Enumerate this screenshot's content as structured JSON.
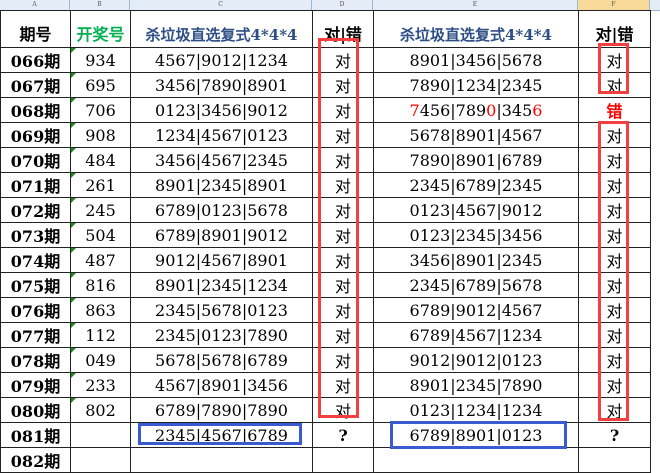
{
  "column_letters": [
    "A",
    "B",
    "C",
    "D",
    "E",
    "F"
  ],
  "headers": {
    "period": "期号",
    "draw": "开奖号",
    "plan1": "杀垃圾直选复式4*4*4",
    "result1": "对|错",
    "plan2": "杀垃圾直选复式4*4*4",
    "result2": "对|错"
  },
  "colors": {
    "draw_header": "#00b050",
    "plan_header": "#2e4f86",
    "box_red": "#f24040",
    "box_blue": "#3a5bd0",
    "wrong": "#ff0000"
  },
  "rows": [
    {
      "period": "066期",
      "draw": "934",
      "plan1": "4567|9012|1234",
      "result1": "对",
      "plan2": [
        {
          "t": "8901|3456|5678"
        }
      ],
      "result2": "对"
    },
    {
      "period": "067期",
      "draw": "695",
      "plan1": "3456|7890|8901",
      "result1": "对",
      "plan2": [
        {
          "t": "7890|1234|2345"
        }
      ],
      "result2": "对"
    },
    {
      "period": "068期",
      "draw": "706",
      "plan1": "0123|3456|9012",
      "result1": "对",
      "plan2": [
        {
          "t": "7",
          "red": true
        },
        {
          "t": "456|789"
        },
        {
          "t": "0",
          "red": true
        },
        {
          "t": "|345"
        },
        {
          "t": "6",
          "red": true
        }
      ],
      "result2": "错",
      "result2_red": true
    },
    {
      "period": "069期",
      "draw": "908",
      "plan1": "1234|4567|0123",
      "result1": "对",
      "plan2": [
        {
          "t": "5678|8901|4567"
        }
      ],
      "result2": "对"
    },
    {
      "period": "070期",
      "draw": "484",
      "plan1": "3456|4567|2345",
      "result1": "对",
      "plan2": [
        {
          "t": "7890|8901|6789"
        }
      ],
      "result2": "对"
    },
    {
      "period": "071期",
      "draw": "261",
      "plan1": "8901|2345|8901",
      "result1": "对",
      "plan2": [
        {
          "t": "2345|6789|2345"
        }
      ],
      "result2": "对"
    },
    {
      "period": "072期",
      "draw": "245",
      "plan1": "6789|0123|5678",
      "result1": "对",
      "plan2": [
        {
          "t": "0123|4567|9012"
        }
      ],
      "result2": "对"
    },
    {
      "period": "073期",
      "draw": "504",
      "plan1": "6789|8901|9012",
      "result1": "对",
      "plan2": [
        {
          "t": "0123|2345|3456"
        }
      ],
      "result2": "对"
    },
    {
      "period": "074期",
      "draw": "487",
      "plan1": "9012|4567|8901",
      "result1": "对",
      "plan2": [
        {
          "t": "3456|8901|2345"
        }
      ],
      "result2": "对"
    },
    {
      "period": "075期",
      "draw": "816",
      "plan1": "8901|2345|1234",
      "result1": "对",
      "plan2": [
        {
          "t": "2345|6789|5678"
        }
      ],
      "result2": "对"
    },
    {
      "period": "076期",
      "draw": "863",
      "plan1": "2345|5678|0123",
      "result1": "对",
      "plan2": [
        {
          "t": "6789|9012|4567"
        }
      ],
      "result2": "对"
    },
    {
      "period": "077期",
      "draw": "112",
      "plan1": "2345|0123|7890",
      "result1": "对",
      "plan2": [
        {
          "t": "6789|4567|1234"
        }
      ],
      "result2": "对"
    },
    {
      "period": "078期",
      "draw": "049",
      "plan1": "5678|5678|6789",
      "result1": "对",
      "plan2": [
        {
          "t": "9012|9012|0123"
        }
      ],
      "result2": "对"
    },
    {
      "period": "079期",
      "draw": "233",
      "plan1": "4567|8901|3456",
      "result1": "对",
      "plan2": [
        {
          "t": "8901|2345|7890"
        }
      ],
      "result2": "对"
    },
    {
      "period": "080期",
      "draw": "802",
      "plan1": "6789|7890|7890",
      "result1": "对",
      "plan2": [
        {
          "t": "0123|1234|1234"
        }
      ],
      "result2": "对"
    },
    {
      "period": "081期",
      "draw": "",
      "plan1": "2345|4567|6789",
      "result1": "?",
      "plan2": [
        {
          "t": "6789|8901|0123"
        }
      ],
      "result2": "?"
    }
  ],
  "partial_row": {
    "period": "082期"
  }
}
